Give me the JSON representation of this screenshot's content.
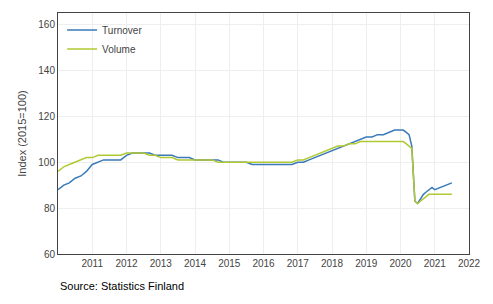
{
  "chart_data": {
    "type": "line",
    "ylabel": "Index (2015=100)",
    "annotations": [
      "Source: Statistics Finland"
    ],
    "x": [
      2010.0,
      2010.17,
      2010.33,
      2010.5,
      2010.67,
      2010.83,
      2011.0,
      2011.17,
      2011.33,
      2011.5,
      2011.67,
      2011.83,
      2012.0,
      2012.17,
      2012.33,
      2012.5,
      2012.67,
      2012.83,
      2013.0,
      2013.17,
      2013.33,
      2013.5,
      2013.67,
      2013.83,
      2014.0,
      2014.17,
      2014.33,
      2014.5,
      2014.67,
      2014.83,
      2015.0,
      2015.17,
      2015.33,
      2015.5,
      2015.67,
      2015.83,
      2016.0,
      2016.17,
      2016.33,
      2016.5,
      2016.67,
      2016.83,
      2017.0,
      2017.17,
      2017.33,
      2017.5,
      2017.67,
      2017.83,
      2018.0,
      2018.17,
      2018.33,
      2018.5,
      2018.67,
      2018.83,
      2019.0,
      2019.17,
      2019.33,
      2019.5,
      2019.67,
      2019.83,
      2020.0,
      2020.08,
      2020.17,
      2020.25,
      2020.33,
      2020.42,
      2020.5,
      2020.58,
      2020.67,
      2020.75,
      2020.83,
      2020.92,
      2021.0,
      2021.17,
      2021.33,
      2021.5
    ],
    "series": [
      {
        "name": "Turnover",
        "color": "#3a7ab8",
        "values": [
          88,
          90,
          91,
          93,
          94,
          96,
          99,
          100,
          101,
          101,
          101,
          101,
          103,
          104,
          104,
          104,
          104,
          103,
          103,
          103,
          103,
          102,
          102,
          102,
          101,
          101,
          101,
          101,
          101,
          100,
          100,
          100,
          100,
          100,
          99,
          99,
          99,
          99,
          99,
          99,
          99,
          99,
          100,
          100,
          101,
          102,
          103,
          104,
          105,
          106,
          107,
          108,
          109,
          110,
          111,
          111,
          112,
          112,
          113,
          114,
          114,
          114,
          113,
          112,
          107,
          83,
          82,
          84,
          86,
          87,
          88,
          89,
          88,
          89,
          90,
          91
        ]
      },
      {
        "name": "Volume",
        "color": "#b0c832",
        "values": [
          96,
          98,
          99,
          100,
          101,
          102,
          102,
          103,
          103,
          103,
          103,
          103,
          104,
          104,
          104,
          104,
          103,
          103,
          102,
          102,
          102,
          101,
          101,
          101,
          101,
          101,
          101,
          101,
          100,
          100,
          100,
          100,
          100,
          100,
          100,
          100,
          100,
          100,
          100,
          100,
          100,
          100,
          101,
          101,
          102,
          103,
          104,
          105,
          106,
          107,
          107,
          108,
          108,
          109,
          109,
          109,
          109,
          109,
          109,
          109,
          109,
          109,
          108,
          107,
          106,
          83,
          82,
          83,
          84,
          85,
          86,
          86,
          86,
          86,
          86,
          86
        ]
      }
    ],
    "xlim": [
      2010.0,
      2022.0
    ],
    "xticks": [
      2011,
      2012,
      2013,
      2014,
      2015,
      2016,
      2017,
      2018,
      2019,
      2020,
      2021,
      2022
    ],
    "ylim": [
      60,
      165
    ],
    "yticks": [
      60,
      80,
      100,
      120,
      140,
      160
    ],
    "grid": true,
    "legend": "upper left"
  }
}
